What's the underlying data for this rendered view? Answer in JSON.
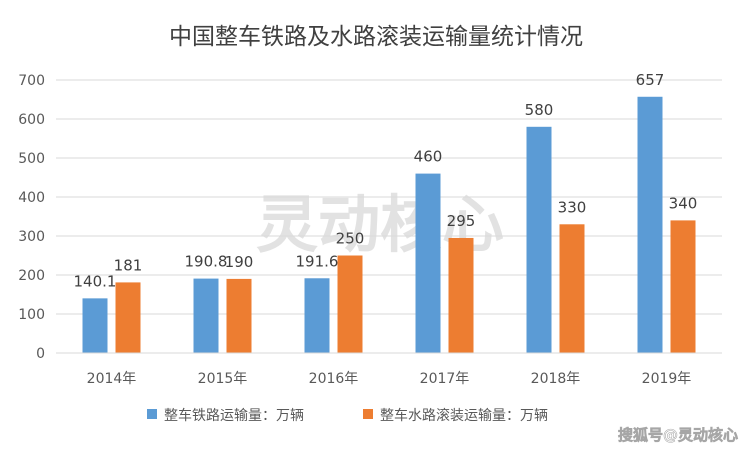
{
  "chart_data": {
    "type": "bar",
    "title": "中国整车铁路及水路滚装运输量统计情况",
    "categories": [
      "2014年",
      "2015年",
      "2016年",
      "2017年",
      "2018年",
      "2019年"
    ],
    "series": [
      {
        "name": "整车铁路运输量：万辆",
        "values": [
          140.1,
          190.8,
          191.6,
          460,
          580,
          657
        ],
        "color": "#5b9bd5",
        "labels": [
          "140.1",
          "190.8",
          "191.6",
          "460",
          "580",
          "657"
        ]
      },
      {
        "name": "整车水路滚装运输量：万辆",
        "values": [
          181,
          190,
          250,
          295,
          330,
          340
        ],
        "color": "#ed7d31",
        "labels": [
          "181",
          "190",
          "250",
          "295",
          "330",
          "340"
        ]
      }
    ],
    "ylim": [
      0,
      700
    ],
    "yticks": [
      "0",
      "100",
      "200",
      "300",
      "400",
      "500",
      "600",
      "700"
    ],
    "xlabel": "",
    "ylabel": "",
    "grid": true,
    "legend_position": "bottom"
  },
  "watermark": "灵动核心",
  "footer_watermark": "搜狐号@灵动核心",
  "colors": {
    "grid": "#d9d9d9",
    "axis_text": "#595959",
    "title_text": "#404040"
  }
}
